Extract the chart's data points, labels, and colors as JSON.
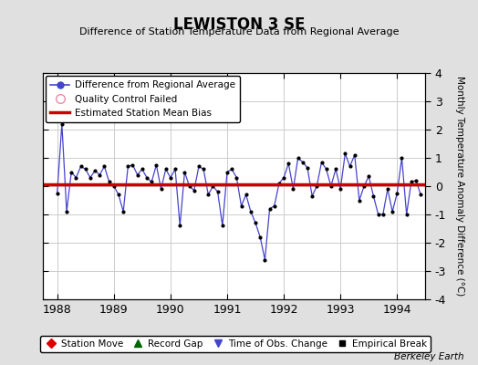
{
  "title": "LEWISTON 3 SE",
  "subtitle": "Difference of Station Temperature Data from Regional Average",
  "ylabel_right": "Monthly Temperature Anomaly Difference (°C)",
  "watermark": "Berkeley Earth",
  "xlim": [
    1987.75,
    1994.5
  ],
  "ylim": [
    -4,
    4
  ],
  "yticks": [
    -4,
    -3,
    -2,
    -1,
    0,
    1,
    2,
    3,
    4
  ],
  "xticks": [
    1988,
    1989,
    1990,
    1991,
    1992,
    1993,
    1994
  ],
  "bias_level": 0.07,
  "bg_color": "#e0e0e0",
  "plot_bg_color": "#ffffff",
  "line_color": "#4444cc",
  "marker_color": "#000000",
  "bias_color": "#cc0000",
  "times": [
    1988.0,
    1988.083,
    1988.167,
    1988.25,
    1988.333,
    1988.417,
    1988.5,
    1988.583,
    1988.667,
    1988.75,
    1988.833,
    1988.917,
    1989.0,
    1989.083,
    1989.167,
    1989.25,
    1989.333,
    1989.417,
    1989.5,
    1989.583,
    1989.667,
    1989.75,
    1989.833,
    1989.917,
    1990.0,
    1990.083,
    1990.167,
    1990.25,
    1990.333,
    1990.417,
    1990.5,
    1990.583,
    1990.667,
    1990.75,
    1990.833,
    1990.917,
    1991.0,
    1991.083,
    1991.167,
    1991.25,
    1991.333,
    1991.417,
    1991.5,
    1991.583,
    1991.667,
    1991.75,
    1991.833,
    1991.917,
    1992.0,
    1992.083,
    1992.167,
    1992.25,
    1992.333,
    1992.417,
    1992.5,
    1992.583,
    1992.667,
    1992.75,
    1992.833,
    1992.917,
    1993.0,
    1993.083,
    1993.167,
    1993.25,
    1993.333,
    1993.417,
    1993.5,
    1993.583,
    1993.667,
    1993.75,
    1993.833,
    1993.917,
    1994.0,
    1994.083,
    1994.167,
    1994.25,
    1994.333,
    1994.417
  ],
  "values": [
    -0.25,
    2.2,
    -0.9,
    0.5,
    0.3,
    0.7,
    0.6,
    0.3,
    0.55,
    0.4,
    0.7,
    0.15,
    0.0,
    -0.3,
    -0.9,
    0.7,
    0.75,
    0.4,
    0.6,
    0.3,
    0.15,
    0.75,
    -0.1,
    0.6,
    0.3,
    0.6,
    -1.4,
    0.5,
    0.0,
    -0.15,
    0.7,
    0.6,
    -0.3,
    0.0,
    -0.2,
    -1.4,
    0.5,
    0.6,
    0.3,
    -0.7,
    -0.3,
    -0.9,
    -1.3,
    -1.8,
    -2.6,
    -0.8,
    -0.7,
    0.1,
    0.3,
    0.8,
    -0.1,
    1.0,
    0.85,
    0.65,
    -0.35,
    0.0,
    0.85,
    0.6,
    0.0,
    0.6,
    -0.1,
    1.15,
    0.7,
    1.1,
    -0.5,
    0.0,
    0.35,
    -0.35,
    -1.0,
    -1.0,
    -0.1,
    -0.9,
    -0.25,
    1.0,
    -1.0,
    0.15,
    0.2,
    -0.3
  ]
}
